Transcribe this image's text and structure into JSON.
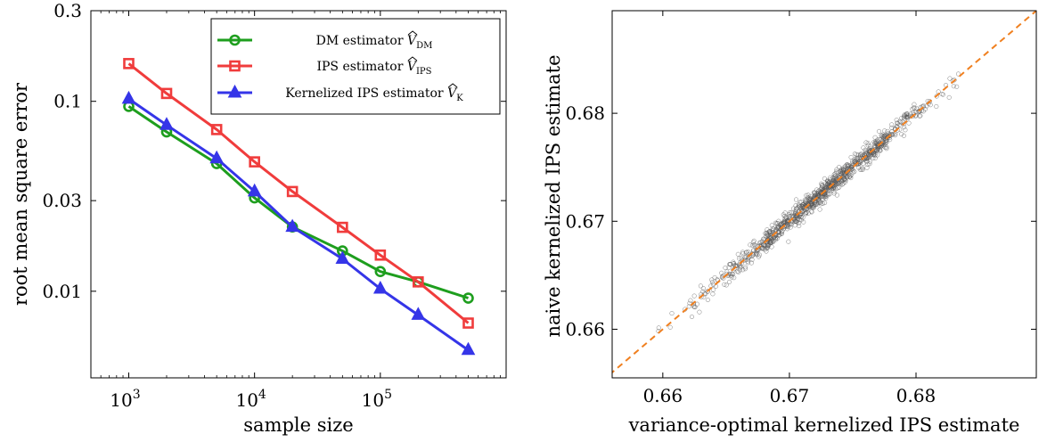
{
  "chart_data": [
    {
      "type": "line",
      "xscale": "log",
      "yscale": "log",
      "x": [
        1000,
        2000,
        5000,
        10000,
        20000,
        50000,
        100000,
        200000,
        500000
      ],
      "x_ticks": [
        1000,
        10000,
        100000
      ],
      "x_tick_labels": [
        {
          "base": "10",
          "exp": "3"
        },
        {
          "base": "10",
          "exp": "4"
        },
        {
          "base": "10",
          "exp": "5"
        }
      ],
      "xlim": [
        500,
        1000000
      ],
      "ylim": [
        0.0035,
        0.3
      ],
      "y_ticks": [
        0.01,
        0.03,
        0.1,
        0.3
      ],
      "y_tick_labels": [
        "0.01",
        "0.03",
        "0.1",
        "0.3"
      ],
      "xlabel": "sample size",
      "ylabel": "root mean square error",
      "legend_position": "top-right",
      "series": [
        {
          "name": "DM estimator",
          "symbol": "V",
          "subscript": "DM",
          "color": "#1e9e1e",
          "marker": "circle",
          "values": [
            0.094,
            0.069,
            0.047,
            0.031,
            0.0218,
            0.0163,
            0.0127,
            0.0112,
            0.0092
          ]
        },
        {
          "name": "IPS estimator",
          "symbol": "V",
          "subscript": "IPS",
          "color": "#f03c3c",
          "marker": "square",
          "values": [
            0.158,
            0.11,
            0.071,
            0.048,
            0.0335,
            0.0217,
            0.0155,
            0.0112,
            0.0068
          ]
        },
        {
          "name": "Kernelized IPS estimator",
          "symbol": "V",
          "subscript": "K",
          "color": "#3535e8",
          "marker": "triangle",
          "values": [
            0.103,
            0.075,
            0.05,
            0.0335,
            0.0218,
            0.0148,
            0.0103,
            0.0075,
            0.0049
          ]
        }
      ]
    },
    {
      "type": "scatter",
      "xlim": [
        0.656,
        0.6895
      ],
      "ylim": [
        0.6555,
        0.6895
      ],
      "x_ticks": [
        0.66,
        0.67,
        0.68
      ],
      "x_tick_labels": [
        "0.66",
        "0.67",
        "0.68"
      ],
      "y_ticks": [
        0.66,
        0.67,
        0.68
      ],
      "y_tick_labels": [
        "0.66",
        "0.67",
        "0.68"
      ],
      "xlabel": "variance-optimal kernelized IPS estimate",
      "ylabel": "naive kernelized IPS estimate",
      "reference_line": {
        "style": "dashed",
        "color": "#f08020",
        "slope": 1,
        "intercept": 0
      },
      "point_color": "#555555",
      "points": {
        "count": 1000,
        "x_mean": 0.6725,
        "x_sd": 0.0045,
        "residual_sd": 0.00045,
        "x_min": 0.6585,
        "x_max": 0.6865
      }
    }
  ]
}
